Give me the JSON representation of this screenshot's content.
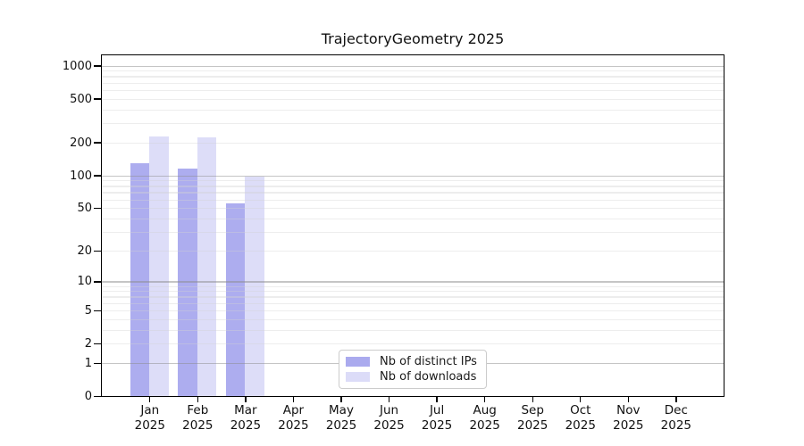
{
  "chart_data": {
    "type": "bar",
    "title": "TrajectoryGeometry 2025",
    "categories": [
      "Jan",
      "Feb",
      "Mar",
      "Apr",
      "May",
      "Jun",
      "Jul",
      "Aug",
      "Sep",
      "Oct",
      "Nov",
      "Dec"
    ],
    "x_year_label": "2025",
    "series": [
      {
        "name": "Nb of distinct IPs",
        "color": "#aaaaee",
        "values": [
          133,
          119,
          57,
          0,
          0,
          0,
          0,
          0,
          0,
          0,
          0,
          0
        ]
      },
      {
        "name": "Nb of downloads",
        "color": "#dcdcf8",
        "values": [
          232,
          227,
          100,
          0,
          0,
          0,
          0,
          0,
          0,
          0,
          0,
          0
        ]
      }
    ],
    "yticks": [
      0,
      1,
      2,
      5,
      10,
      20,
      50,
      100,
      200,
      500,
      1000
    ],
    "yscale": "log1p",
    "ylim": [
      0,
      1275
    ],
    "grid": true,
    "legend_position": "lower center",
    "gridline_major_values": [
      1,
      10,
      100,
      1000
    ]
  }
}
